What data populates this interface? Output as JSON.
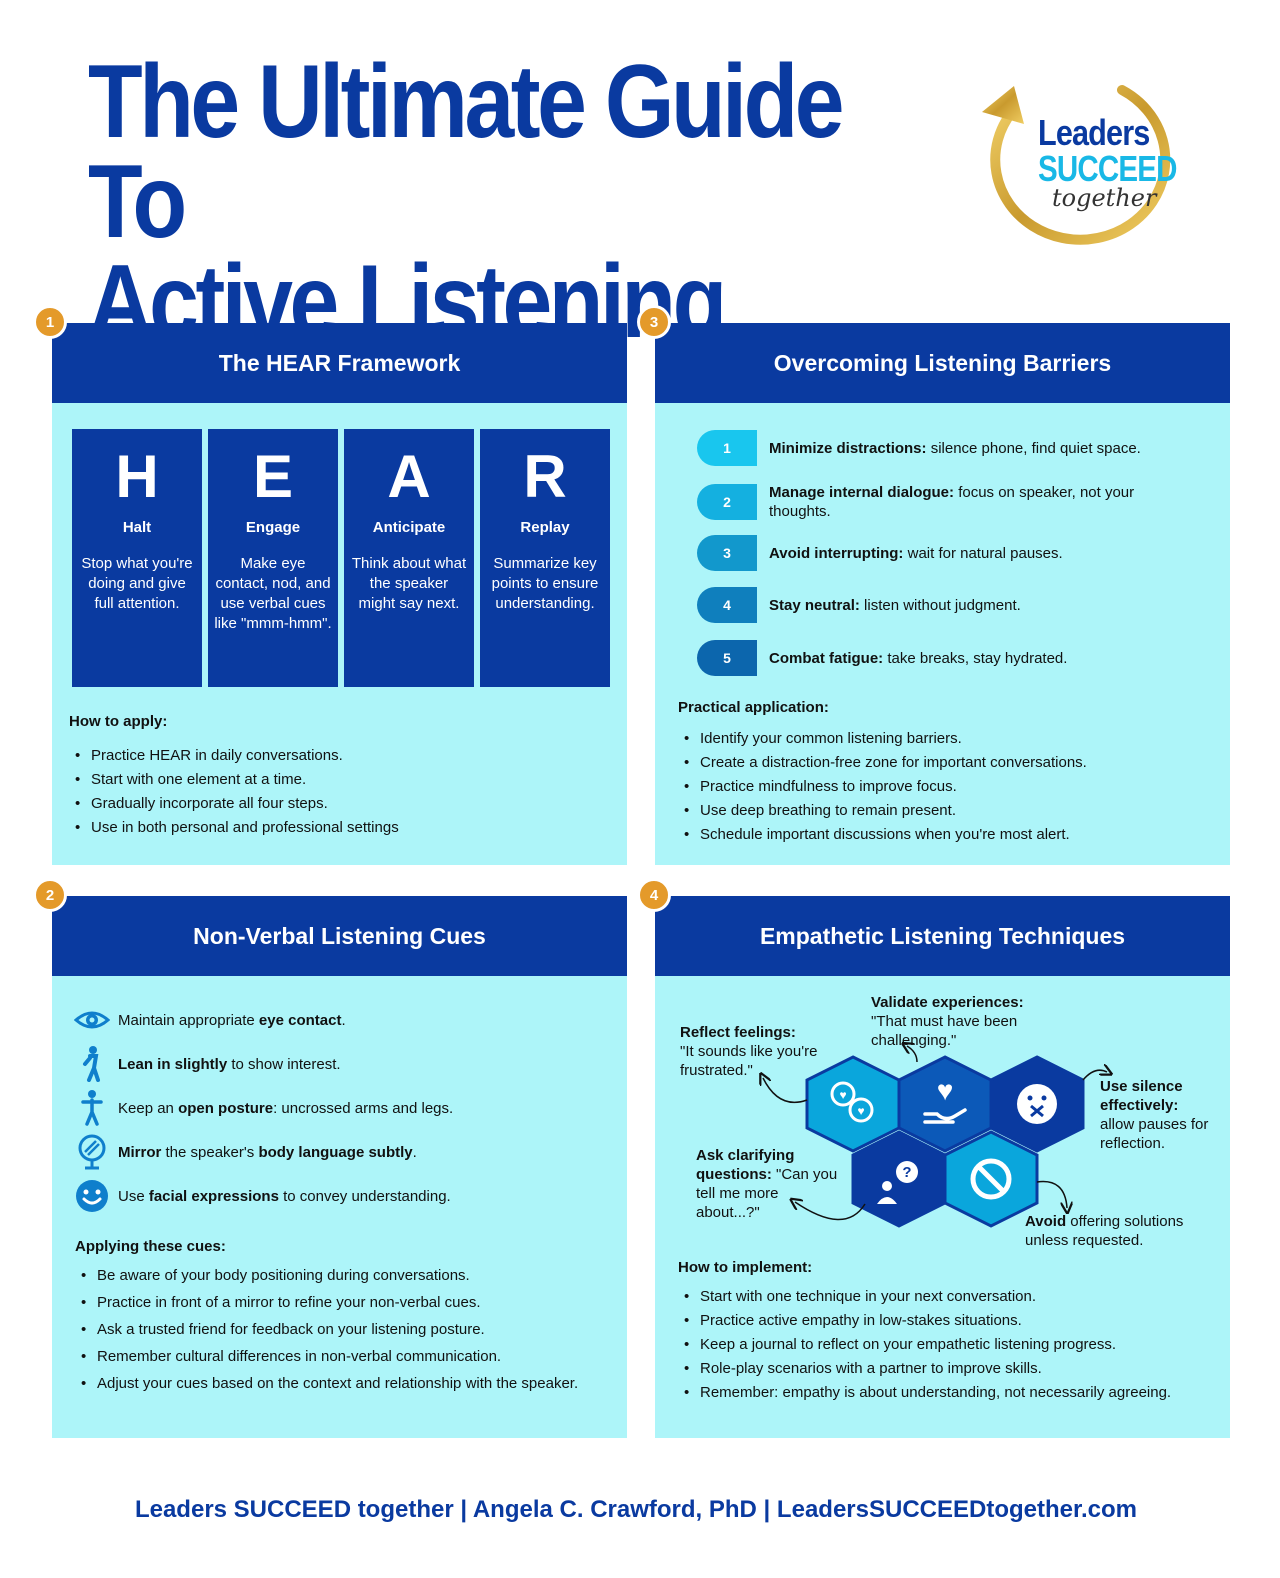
{
  "header": {
    "title_line1": "The Ultimate Guide To",
    "title_line2": "Active Listening",
    "logo_text1": "Leaders",
    "logo_text2": "SUCCEED",
    "logo_text3": "together"
  },
  "colors": {
    "navy": "#0a3aa0",
    "panel_bg": "#adf5f9",
    "badge": "#e49a2a",
    "cyan": "#19b8e6"
  },
  "panel1": {
    "number": "1",
    "title": "The HEAR Framework",
    "cards": [
      {
        "letter": "H",
        "word": "Halt",
        "desc": "Stop what you're doing and give full attention."
      },
      {
        "letter": "E",
        "word": "Engage",
        "desc": "Make eye contact, nod, and use verbal cues like \"mmm-hmm\"."
      },
      {
        "letter": "A",
        "word": "Anticipate",
        "desc": "Think about what the speaker might say next."
      },
      {
        "letter": "R",
        "word": "Replay",
        "desc": "Summarize key points to ensure understanding."
      }
    ],
    "apply_title": "How to apply:",
    "apply_items": [
      "Practice HEAR in daily conversations.",
      "Start with one element at a time.",
      "Gradually incorporate all four steps.",
      "Use in both personal and professional settings"
    ]
  },
  "panel2": {
    "number": "2",
    "title": "Non-Verbal Listening Cues",
    "cues": [
      {
        "icon": "eye-icon",
        "t1": "Maintain appropriate ",
        "b1": "eye contact",
        "t2": ".",
        "b2": "",
        "t3": ""
      },
      {
        "icon": "lean-person-icon",
        "t1": "",
        "b1": "Lean in slightly",
        "t2": " to show interest.",
        "b2": "",
        "t3": ""
      },
      {
        "icon": "standing-person-icon",
        "t1": "Keep an ",
        "b1": "open posture",
        "t2": ": uncrossed arms and legs.",
        "b2": "",
        "t3": ""
      },
      {
        "icon": "mirror-icon",
        "t1": "",
        "b1": "Mirror",
        "t2": " the speaker's ",
        "b2": "body language subtly",
        "t3": "."
      },
      {
        "icon": "smiley-icon",
        "t1": "Use ",
        "b1": "facial expressions",
        "t2": " to convey understanding.",
        "b2": "",
        "t3": ""
      }
    ],
    "apply_title": "Applying these cues:",
    "apply_items": [
      "Be aware of your body positioning during conversations.",
      "Practice in front of a mirror to refine your non-verbal cues.",
      "Ask a trusted friend for feedback on your listening posture.",
      "Remember cultural differences in non-verbal communication.",
      "Adjust your cues based on the context and relationship with the speaker."
    ]
  },
  "panel3": {
    "number": "3",
    "title": "Overcoming Listening Barriers",
    "barriers": [
      {
        "num": "1",
        "color": "#19c6ee",
        "bold": "Minimize distractions:",
        "text": " silence phone, find quiet space."
      },
      {
        "num": "2",
        "color": "#14b0e0",
        "bold": "Manage internal dialogue:",
        "text": " focus on speaker, not your thoughts."
      },
      {
        "num": "3",
        "color": "#1298cc",
        "bold": "Avoid interrupting:",
        "text": " wait for natural pauses."
      },
      {
        "num": "4",
        "color": "#0f7fbd",
        "bold": "Stay neutral:",
        "text": " listen without judgment."
      },
      {
        "num": "5",
        "color": "#0c66ad",
        "bold": "Combat fatigue:",
        "text": " take breaks, stay hydrated."
      }
    ],
    "apply_title": "Practical application:",
    "apply_items": [
      "Identify your common listening barriers.",
      "Create a distraction-free zone for important conversations.",
      "Practice mindfulness to improve focus.",
      "Use deep breathing to remain present.",
      "Schedule important discussions when you're most alert."
    ]
  },
  "panel4": {
    "number": "4",
    "title": "Empathetic Listening Techniques",
    "validate": {
      "bold": "Validate experiences:",
      "text": "\"That must have been challenging.\""
    },
    "reflect": {
      "bold": "Reflect feelings:",
      "text": "\"It sounds like you're frustrated.\""
    },
    "silence": {
      "bold": "Use silence effectively:",
      "text": "allow pauses for reflection."
    },
    "clarify": {
      "bold": "Ask clarifying questions:",
      "text": " \"Can you tell me more about...?\""
    },
    "avoid": {
      "bold": "Avoid",
      "text": " offering solutions unless requested."
    },
    "apply_title": "How to implement:",
    "apply_items": [
      "Start with one technique in your next conversation.",
      "Practice active empathy in low-stakes situations.",
      "Keep a journal to reflect on your empathetic listening progress.",
      "Role-play scenarios with a partner to improve skills.",
      "Remember: empathy is about understanding, not necessarily agreeing."
    ]
  },
  "footer": {
    "text": "Leaders SUCCEED together | Angela C. Crawford, PhD | LeadersSUCCEEDtogether.com"
  }
}
